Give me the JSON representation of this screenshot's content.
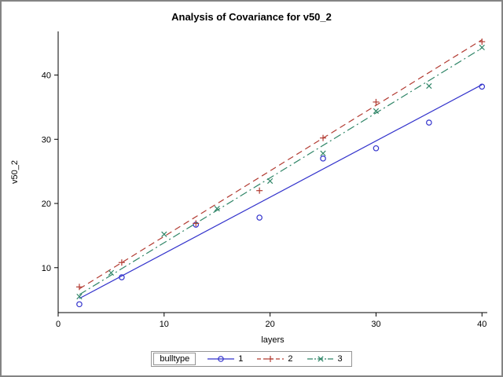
{
  "window": {
    "background": "#ffffff",
    "border_color": "#848484",
    "text_color": "#000000"
  },
  "chart_data": {
    "type": "scatter",
    "title": "Analysis of Covariance for v50_2",
    "xlabel": "layers",
    "ylabel": "v50_2",
    "xlim": [
      0,
      40.5
    ],
    "ylim": [
      3,
      46.8
    ],
    "xticks": [
      0,
      10,
      20,
      30,
      40
    ],
    "yticks": [
      10,
      20,
      30,
      40
    ],
    "grid": false,
    "legend": {
      "label": "bulltype",
      "position": "bottom"
    },
    "series": [
      {
        "name": "1",
        "color": "#3333cc",
        "marker": "circle",
        "line_style": "solid",
        "points": [
          [
            2,
            4.3
          ],
          [
            6,
            8.5
          ],
          [
            13,
            16.7
          ],
          [
            19,
            17.8
          ],
          [
            25,
            27.0
          ],
          [
            30,
            28.6
          ],
          [
            35,
            32.6
          ],
          [
            40,
            38.2
          ]
        ],
        "fit_line": [
          [
            2,
            5.2
          ],
          [
            40,
            38.5
          ]
        ]
      },
      {
        "name": "2",
        "color": "#b23b32",
        "marker": "plus",
        "line_style": "dashed",
        "points": [
          [
            2,
            7.0
          ],
          [
            6,
            10.8
          ],
          [
            13,
            16.9
          ],
          [
            19,
            22.0
          ],
          [
            25,
            30.2
          ],
          [
            30,
            35.8
          ],
          [
            40,
            45.2
          ]
        ],
        "fit_line": [
          [
            2,
            6.7
          ],
          [
            40,
            45.5
          ]
        ]
      },
      {
        "name": "3",
        "color": "#2f8567",
        "marker": "x",
        "line_style": "dashdot",
        "points": [
          [
            2,
            5.5
          ],
          [
            5,
            9.2
          ],
          [
            10,
            15.2
          ],
          [
            15,
            19.2
          ],
          [
            20,
            23.5
          ],
          [
            25,
            27.8
          ],
          [
            30,
            34.4
          ],
          [
            35,
            38.3
          ],
          [
            40,
            44.3
          ]
        ],
        "fit_line": [
          [
            2,
            5.8
          ],
          [
            40,
            44.2
          ]
        ]
      }
    ]
  }
}
